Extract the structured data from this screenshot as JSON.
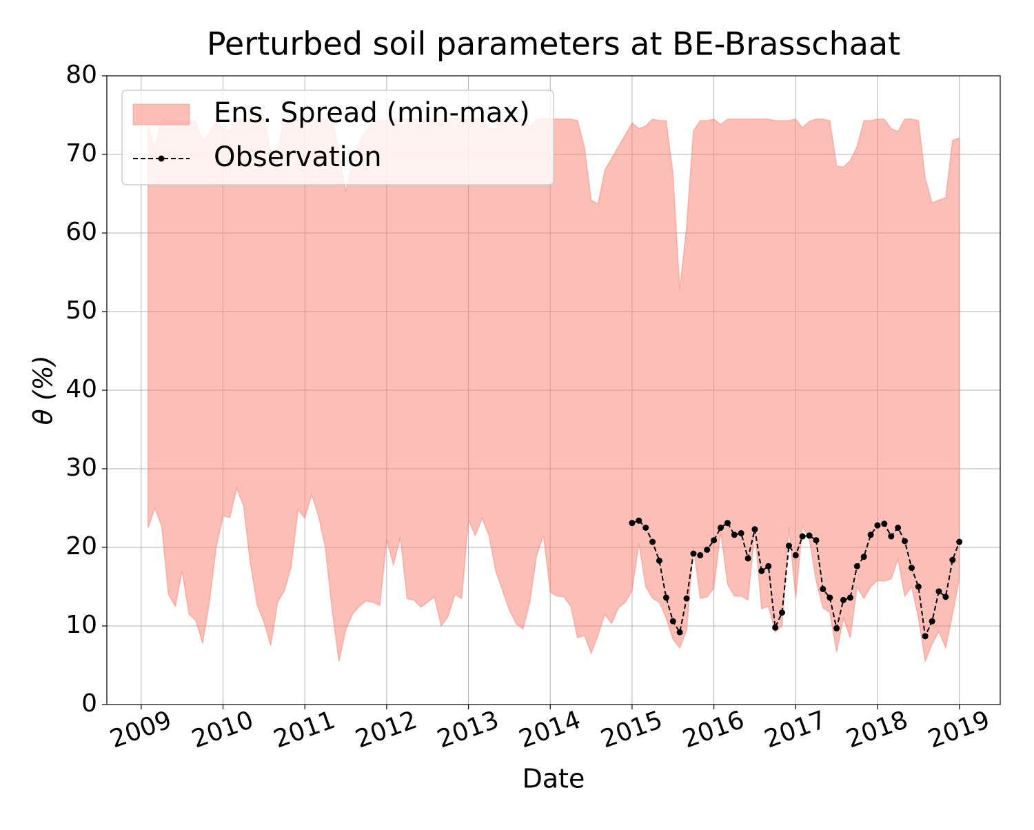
{
  "chart_data": {
    "type": "line",
    "title": "Perturbed soil parameters at BE-Brasschaat",
    "x_label": "Date",
    "y_label": "θ  (%)",
    "xlim": [
      2008.58,
      2019.5
    ],
    "xticks": [
      2009,
      2010,
      2011,
      2012,
      2013,
      2014,
      2015,
      2016,
      2017,
      2018,
      2019
    ],
    "ylim": [
      0,
      80
    ],
    "yticks": [
      0,
      10,
      20,
      30,
      40,
      50,
      60,
      70,
      80
    ],
    "grid": true,
    "legend": "upper left",
    "series": [
      {
        "name": "Ens. Spread (min-max)",
        "type": "area",
        "color": "#fa8072",
        "x": [
          2009.083,
          2009.167,
          2009.25,
          2009.333,
          2009.417,
          2009.5,
          2009.583,
          2009.667,
          2009.75,
          2009.833,
          2009.917,
          2010,
          2010.083,
          2010.167,
          2010.25,
          2010.333,
          2010.417,
          2010.5,
          2010.583,
          2010.667,
          2010.75,
          2010.833,
          2010.917,
          2011,
          2011.083,
          2011.167,
          2011.25,
          2011.333,
          2011.417,
          2011.5,
          2011.583,
          2011.667,
          2011.75,
          2011.833,
          2011.917,
          2012,
          2012.083,
          2012.167,
          2012.25,
          2012.333,
          2012.417,
          2012.5,
          2012.583,
          2012.667,
          2012.75,
          2012.833,
          2012.917,
          2013,
          2013.083,
          2013.167,
          2013.25,
          2013.333,
          2013.417,
          2013.5,
          2013.583,
          2013.667,
          2013.75,
          2013.833,
          2013.917,
          2014,
          2014.083,
          2014.167,
          2014.25,
          2014.333,
          2014.417,
          2014.5,
          2014.583,
          2014.667,
          2014.75,
          2014.833,
          2014.917,
          2015,
          2015.083,
          2015.167,
          2015.25,
          2015.333,
          2015.417,
          2015.5,
          2015.583,
          2015.667,
          2015.75,
          2015.833,
          2015.917,
          2016,
          2016.083,
          2016.167,
          2016.25,
          2016.333,
          2016.417,
          2016.5,
          2016.583,
          2016.667,
          2016.75,
          2016.833,
          2016.917,
          2017,
          2017.083,
          2017.167,
          2017.25,
          2017.333,
          2017.417,
          2017.5,
          2017.583,
          2017.667,
          2017.75,
          2017.833,
          2017.917,
          2018,
          2018.083,
          2018.167,
          2018.25,
          2018.333,
          2018.417,
          2018.5,
          2018.583,
          2018.667,
          2018.75,
          2018.833,
          2018.917,
          2019
        ],
        "upper": [
          73.5,
          71,
          74.5,
          74.3,
          74.2,
          74.3,
          74.2,
          74.3,
          71.7,
          72.7,
          74.5,
          73.3,
          73,
          74.5,
          74.5,
          74.5,
          74.5,
          74.5,
          70.5,
          70.5,
          74.5,
          74.5,
          74.5,
          74.5,
          74.5,
          74.5,
          74.5,
          74.5,
          70.5,
          65.2,
          69.5,
          71.5,
          73,
          74.3,
          74.3,
          74.3,
          74.5,
          74.5,
          74.5,
          74.5,
          74.5,
          74.5,
          74.5,
          74.5,
          74.5,
          74.5,
          74.5,
          74.5,
          74.5,
          74.5,
          73.3,
          73.3,
          74.5,
          74.5,
          74.5,
          74.5,
          73.5,
          74.5,
          74.5,
          74.5,
          74.5,
          74.5,
          74.5,
          74.3,
          71,
          64.2,
          63.7,
          68,
          69.5,
          71,
          72.5,
          74,
          73.3,
          73.6,
          74.5,
          74.3,
          74.3,
          67.5,
          52.7,
          61,
          73,
          74.3,
          74.3,
          74.5,
          73.8,
          74.5,
          74.5,
          74.5,
          74.5,
          74.5,
          74.5,
          74.5,
          74.3,
          74.3,
          74.3,
          74.5,
          73.4,
          74.2,
          74.5,
          74.5,
          74.3,
          68.5,
          68.4,
          69.2,
          71,
          74.3,
          74.3,
          74.5,
          74.5,
          73.3,
          72.9,
          74.5,
          74.5,
          74.3,
          67,
          63.8,
          64.2,
          64.5,
          71.8,
          72.1
        ],
        "lower": [
          22.5,
          25,
          22.7,
          14,
          12.5,
          17,
          11.5,
          10.7,
          7.8,
          13,
          20,
          24,
          23.8,
          27.5,
          25.3,
          18,
          12.7,
          10.5,
          7.5,
          13,
          14.5,
          17.5,
          24.8,
          23.7,
          26.7,
          24,
          20,
          12,
          5.5,
          9.5,
          11.5,
          12.5,
          13.2,
          13,
          12.6,
          21,
          17.8,
          21.3,
          13.5,
          13.3,
          12.4,
          13,
          13.7,
          10,
          11.2,
          14,
          13.5,
          23.5,
          21.5,
          23.7,
          21.5,
          17,
          14.5,
          12,
          10.3,
          9.6,
          13,
          19,
          21.5,
          14.3,
          13.8,
          13.7,
          12.5,
          8.5,
          8.8,
          6.5,
          8.8,
          11.5,
          10.3,
          12.3,
          13,
          14.5,
          20.5,
          15,
          13.5,
          13,
          11,
          8.3,
          7.2,
          9.5,
          20,
          13.5,
          13.7,
          14.8,
          22,
          15.3,
          13.8,
          13.8,
          13.3,
          22,
          12.2,
          12.5,
          9.2,
          10,
          22.5,
          13.5,
          22.7,
          21,
          15.7,
          12.3,
          11.7,
          6.7,
          11,
          8.5,
          15,
          13.5,
          15,
          15.8,
          15.7,
          16,
          18.5,
          13.8,
          15,
          11,
          5.5,
          7.7,
          9.3,
          7.2,
          11.5,
          16
        ]
      },
      {
        "name": "Observation",
        "type": "line",
        "color": "#000000",
        "x": [
          2015,
          2015.083,
          2015.167,
          2015.25,
          2015.333,
          2015.417,
          2015.5,
          2015.583,
          2015.667,
          2015.75,
          2015.833,
          2015.917,
          2016,
          2016.083,
          2016.167,
          2016.25,
          2016.333,
          2016.417,
          2016.5,
          2016.583,
          2016.667,
          2016.75,
          2016.833,
          2016.917,
          2017,
          2017.083,
          2017.167,
          2017.25,
          2017.333,
          2017.417,
          2017.5,
          2017.583,
          2017.667,
          2017.75,
          2017.833,
          2017.917,
          2018,
          2018.083,
          2018.167,
          2018.25,
          2018.333,
          2018.417,
          2018.5,
          2018.583,
          2018.667,
          2018.75,
          2018.833,
          2018.917,
          2019
        ],
        "values": [
          23.1,
          23.4,
          22.5,
          20.7,
          18.3,
          13.6,
          10.6,
          9.2,
          13.5,
          19.2,
          19,
          19.7,
          20.9,
          22.5,
          23.1,
          21.6,
          21.8,
          18.6,
          22.3,
          17,
          17.6,
          9.8,
          11.7,
          20.2,
          19,
          21.4,
          21.5,
          20.9,
          14.7,
          13.6,
          9.7,
          13.3,
          13.6,
          17.6,
          18.8,
          21.6,
          22.8,
          23,
          21.4,
          22.5,
          20.8,
          17.4,
          15,
          8.7,
          10.6,
          14.4,
          13.7,
          18.4,
          20.7
        ]
      }
    ]
  }
}
